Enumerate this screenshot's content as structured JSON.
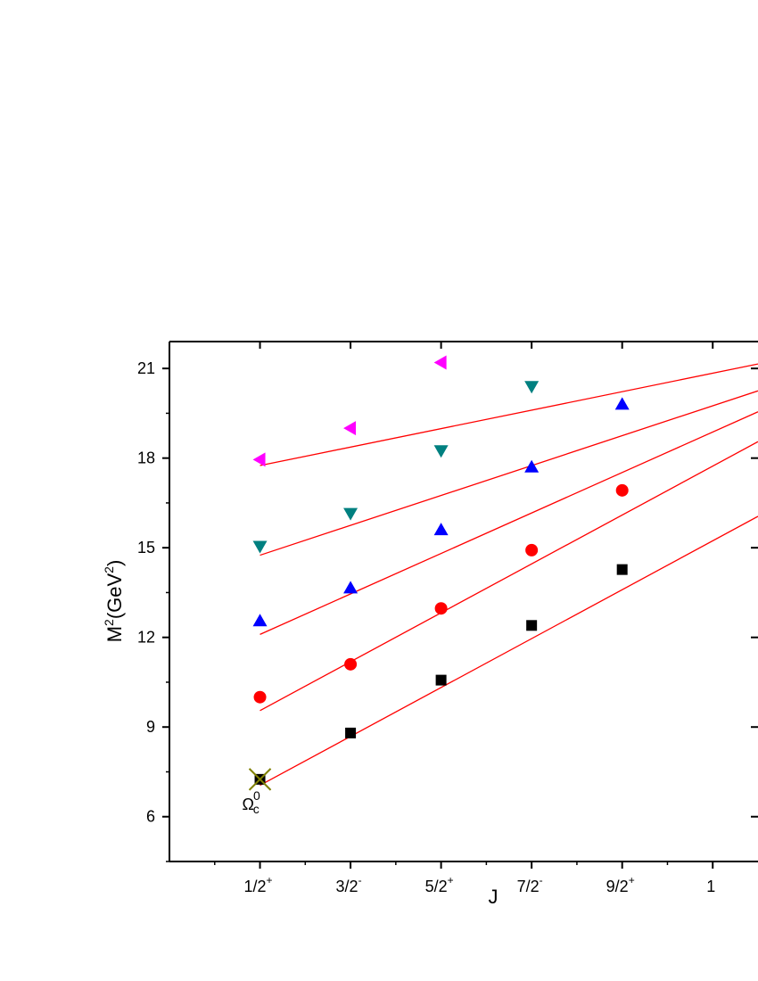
{
  "chart_data": {
    "type": "scatter",
    "xlabel": "J",
    "ylabel_parts": {
      "main": "M",
      "exp1": "2",
      "mid": "(GeV",
      "exp2": "2",
      "close": ")"
    },
    "x_categories": [
      {
        "base": "1/2",
        "sup": "+"
      },
      {
        "base": "3/2",
        "sup": "-"
      },
      {
        "base": "5/2",
        "sup": "+"
      },
      {
        "base": "7/2",
        "sup": "-"
      },
      {
        "base": "9/2",
        "sup": "+"
      },
      {
        "base": "1",
        "sup": ""
      }
    ],
    "xlim": [
      0,
      6.5
    ],
    "ylim": [
      4.5,
      21.9
    ],
    "y_ticks": [
      6,
      9,
      12,
      15,
      18,
      21
    ],
    "series": [
      {
        "marker": "square",
        "color": "#000000",
        "x": [
          1,
          2,
          3,
          4,
          5
        ],
        "y": [
          7.25,
          8.8,
          10.57,
          12.4,
          14.27
        ],
        "fit_y": [
          7.05,
          16.05
        ]
      },
      {
        "marker": "circle",
        "color": "#ff0000",
        "x": [
          1,
          2,
          3,
          4,
          5
        ],
        "y": [
          10.0,
          11.1,
          12.97,
          14.92,
          16.92
        ],
        "fit_y": [
          9.55,
          18.55
        ]
      },
      {
        "marker": "triangle-up",
        "color": "#0000ff",
        "x": [
          1,
          2,
          3,
          4,
          5
        ],
        "y": [
          12.55,
          13.65,
          15.6,
          17.7,
          19.8
        ],
        "fit_y": [
          12.1,
          19.55
        ]
      },
      {
        "marker": "triangle-down",
        "color": "#008080",
        "x": [
          1,
          2,
          3,
          4
        ],
        "y": [
          15.05,
          16.15,
          18.25,
          20.4
        ],
        "fit_y": [
          14.75,
          20.25
        ]
      },
      {
        "marker": "triangle-left",
        "color": "#ff00ff",
        "x": [
          1,
          2,
          3
        ],
        "y": [
          17.95,
          19.0,
          21.2
        ],
        "fit_y": [
          17.75,
          21.15
        ]
      }
    ],
    "fit_color": "#ff0000",
    "fit_x_start": 1,
    "fit_x_end": 6.5,
    "annotation": {
      "base": "Ω",
      "sub": "c",
      "sup": "0",
      "x": 1,
      "y": 7.25,
      "marker": "cross",
      "color": "#808000"
    }
  }
}
